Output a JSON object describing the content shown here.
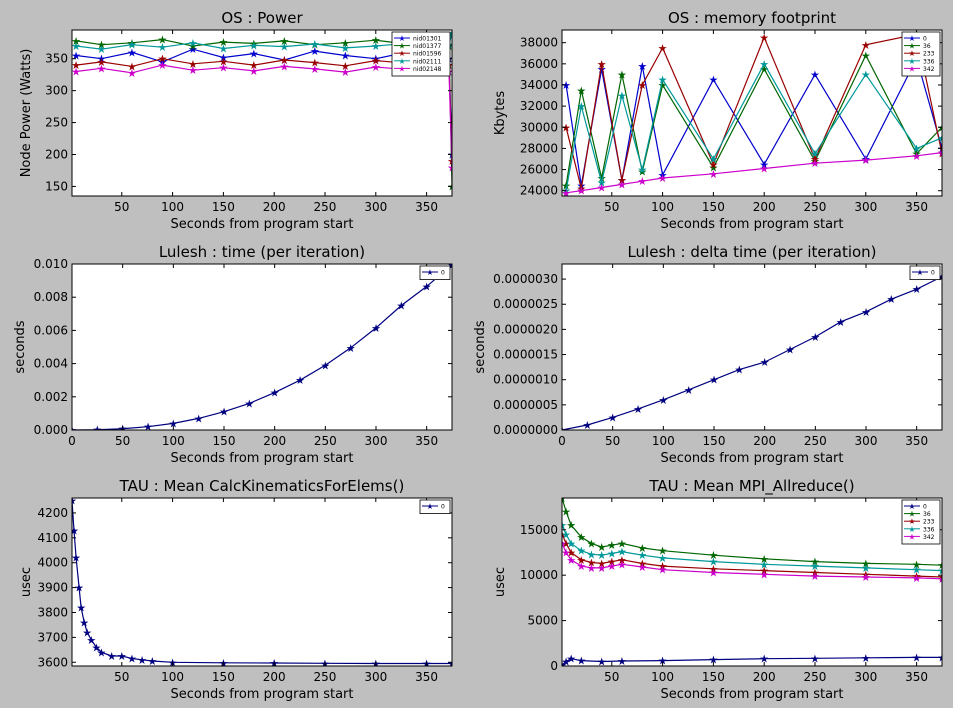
{
  "chart_data": [
    {
      "type": "line",
      "title": "OS : Power",
      "xlabel": "Seconds from program start",
      "ylabel": "Node Power (Watts)",
      "xlim": [
        1,
        375
      ],
      "ylim": [
        135,
        395
      ],
      "xticks": [
        50,
        100,
        150,
        200,
        250,
        300,
        350
      ],
      "yticks": [
        150,
        200,
        250,
        300,
        350
      ],
      "legend": "top-right",
      "series": [
        {
          "name": "nid01301",
          "color": "#0000cc",
          "x": [
            5,
            30,
            60,
            90,
            120,
            150,
            180,
            210,
            240,
            270,
            300,
            330,
            360,
            372,
            375
          ],
          "y": [
            355,
            350,
            360,
            345,
            365,
            352,
            358,
            348,
            362,
            355,
            350,
            360,
            355,
            350,
            200
          ]
        },
        {
          "name": "nid01377",
          "color": "#006600",
          "x": [
            5,
            30,
            60,
            90,
            120,
            150,
            180,
            210,
            240,
            270,
            300,
            330,
            360,
            372,
            375
          ],
          "y": [
            378,
            372,
            375,
            380,
            370,
            376,
            374,
            378,
            372,
            375,
            379,
            373,
            376,
            370,
            150
          ]
        },
        {
          "name": "nid01596",
          "color": "#990000",
          "x": [
            5,
            30,
            60,
            90,
            120,
            150,
            180,
            210,
            240,
            270,
            300,
            330,
            360,
            372,
            375
          ],
          "y": [
            340,
            345,
            338,
            350,
            342,
            346,
            340,
            348,
            344,
            339,
            347,
            343,
            345,
            340,
            190
          ]
        },
        {
          "name": "nid02111",
          "color": "#009999",
          "x": [
            5,
            30,
            60,
            90,
            120,
            150,
            180,
            210,
            240,
            270,
            300,
            330,
            360,
            372,
            375
          ],
          "y": [
            370,
            365,
            372,
            368,
            375,
            366,
            371,
            369,
            373,
            367,
            370,
            374,
            368,
            372,
            390
          ]
        },
        {
          "name": "nid02148",
          "color": "#cc00cc",
          "x": [
            5,
            30,
            60,
            90,
            120,
            150,
            180,
            210,
            240,
            270,
            300,
            330,
            360,
            372,
            375
          ],
          "y": [
            330,
            335,
            328,
            340,
            332,
            336,
            331,
            338,
            334,
            329,
            337,
            333,
            335,
            330,
            180
          ]
        }
      ]
    },
    {
      "type": "line",
      "title": "OS : memory footprint",
      "xlabel": "Seconds from program start",
      "ylabel": "Kbytes",
      "xlim": [
        1,
        375
      ],
      "ylim": [
        23500,
        39200
      ],
      "xticks": [
        50,
        100,
        150,
        200,
        250,
        300,
        350
      ],
      "yticks": [
        24000,
        26000,
        28000,
        30000,
        32000,
        34000,
        36000,
        38000
      ],
      "legend": "top-right",
      "series": [
        {
          "name": "0",
          "color": "#0000cc",
          "x": [
            5,
            20,
            40,
            60,
            80,
            100,
            150,
            200,
            250,
            300,
            350,
            375
          ],
          "y": [
            34000,
            24500,
            35500,
            25000,
            35800,
            25500,
            34500,
            26500,
            35000,
            27000,
            36500,
            28000
          ]
        },
        {
          "name": "36",
          "color": "#006600",
          "x": [
            5,
            20,
            40,
            60,
            80,
            100,
            150,
            200,
            250,
            300,
            350,
            375
          ],
          "y": [
            24500,
            33500,
            25200,
            35000,
            25800,
            34000,
            26200,
            35500,
            26800,
            36800,
            27500,
            30000
          ]
        },
        {
          "name": "233",
          "color": "#990000",
          "x": [
            5,
            20,
            40,
            60,
            80,
            100,
            150,
            200,
            250,
            300,
            350,
            375
          ],
          "y": [
            30000,
            24200,
            36000,
            25000,
            34000,
            37500,
            26500,
            38500,
            27000,
            37800,
            38800,
            27500
          ]
        },
        {
          "name": "336",
          "color": "#009999",
          "x": [
            5,
            20,
            40,
            60,
            80,
            100,
            150,
            200,
            250,
            300,
            350,
            375
          ],
          "y": [
            24000,
            32000,
            24800,
            33000,
            26000,
            34500,
            27000,
            36000,
            27500,
            35000,
            28000,
            29000
          ]
        },
        {
          "name": "342",
          "color": "#cc00cc",
          "x": [
            5,
            20,
            40,
            60,
            80,
            100,
            150,
            200,
            250,
            300,
            350,
            375
          ],
          "y": [
            23800,
            24000,
            24300,
            24600,
            24900,
            25200,
            25600,
            26100,
            26600,
            26900,
            27300,
            27600
          ]
        }
      ]
    },
    {
      "type": "line",
      "title": "Lulesh : time (per iteration)",
      "xlabel": "Seconds from program start",
      "ylabel": "seconds",
      "xlim": [
        0,
        375
      ],
      "ylim": [
        0,
        0.01
      ],
      "xticks": [
        0,
        50,
        100,
        150,
        200,
        250,
        300,
        350
      ],
      "yticks": [
        0.0,
        0.002,
        0.004,
        0.006,
        0.008,
        0.01
      ],
      "ytick_labels": [
        "0.000",
        "0.002",
        "0.004",
        "0.006",
        "0.008",
        "0.010"
      ],
      "legend": "top-right",
      "series": [
        {
          "name": "0",
          "color": "#000080",
          "x": [
            0,
            25,
            50,
            75,
            100,
            125,
            150,
            175,
            200,
            225,
            250,
            275,
            300,
            325,
            350,
            375
          ],
          "y": [
            0.0,
            2e-05,
            8e-05,
            0.0002,
            0.0004,
            0.0007,
            0.0011,
            0.0016,
            0.00225,
            0.003,
            0.0039,
            0.00495,
            0.00615,
            0.0075,
            0.00865,
            0.00995
          ]
        }
      ]
    },
    {
      "type": "line",
      "title": "Lulesh : delta time (per iteration)",
      "xlabel": "Seconds from program start",
      "ylabel": "seconds",
      "xlim": [
        0,
        375
      ],
      "ylim": [
        0,
        3.3e-06
      ],
      "xticks": [
        0,
        50,
        100,
        150,
        200,
        250,
        300,
        350
      ],
      "yticks": [
        0,
        5e-07,
        1e-06,
        1.5e-06,
        2e-06,
        2.5e-06,
        3e-06
      ],
      "ytick_labels": [
        "0.0000000",
        "0.0000005",
        "0.0000010",
        "0.0000015",
        "0.0000020",
        "0.0000025",
        "0.0000030"
      ],
      "legend": "top-right",
      "series": [
        {
          "name": "0",
          "color": "#000080",
          "x": [
            0,
            25,
            50,
            75,
            100,
            125,
            150,
            175,
            200,
            225,
            250,
            275,
            300,
            325,
            350,
            375
          ],
          "y": [
            0,
            1e-07,
            2.5e-07,
            4.2e-07,
            6e-07,
            8e-07,
            1e-06,
            1.2e-06,
            1.35e-06,
            1.6e-06,
            1.85e-06,
            2.15e-06,
            2.35e-06,
            2.6e-06,
            2.8e-06,
            3.05e-06
          ]
        }
      ]
    },
    {
      "type": "line",
      "title": "TAU : Mean CalcKinematicsForElems()",
      "xlabel": "Seconds from program start",
      "ylabel": "usec",
      "xlim": [
        1,
        375
      ],
      "ylim": [
        3585,
        4260
      ],
      "xticks": [
        50,
        100,
        150,
        200,
        250,
        300,
        350
      ],
      "yticks": [
        3600,
        3700,
        3800,
        3900,
        4000,
        4100,
        4200
      ],
      "legend": "top-right",
      "series": [
        {
          "name": "0",
          "color": "#000080",
          "x": [
            1,
            3,
            5,
            8,
            10,
            13,
            16,
            20,
            25,
            30,
            40,
            50,
            60,
            70,
            80,
            100,
            150,
            200,
            250,
            300,
            350,
            375
          ],
          "y": [
            4250,
            4130,
            4020,
            3900,
            3820,
            3760,
            3720,
            3690,
            3660,
            3640,
            3625,
            3625,
            3615,
            3610,
            3605,
            3600,
            3598,
            3597,
            3596,
            3595,
            3595,
            3595
          ]
        }
      ]
    },
    {
      "type": "line",
      "title": "TAU : Mean MPI_Allreduce()",
      "xlabel": "Seconds from program start",
      "ylabel": "usec",
      "xlim": [
        1,
        375
      ],
      "ylim": [
        0,
        18500
      ],
      "xticks": [
        50,
        100,
        150,
        200,
        250,
        300,
        350
      ],
      "yticks": [
        0,
        5000,
        10000,
        15000
      ],
      "legend": "top-right",
      "series": [
        {
          "name": "0",
          "color": "#000080",
          "x": [
            1,
            5,
            10,
            20,
            40,
            60,
            100,
            150,
            200,
            250,
            300,
            350,
            375
          ],
          "y": [
            100,
            500,
            800,
            600,
            500,
            550,
            600,
            700,
            800,
            850,
            900,
            950,
            950
          ]
        },
        {
          "name": "36",
          "color": "#006600",
          "x": [
            1,
            5,
            10,
            20,
            30,
            40,
            50,
            60,
            80,
            100,
            150,
            200,
            250,
            300,
            350,
            375
          ],
          "y": [
            18500,
            17000,
            15500,
            14200,
            13500,
            13100,
            13300,
            13500,
            13000,
            12700,
            12200,
            11800,
            11500,
            11300,
            11200,
            11100
          ]
        },
        {
          "name": "233",
          "color": "#990000",
          "x": [
            1,
            5,
            10,
            20,
            30,
            40,
            50,
            60,
            80,
            100,
            150,
            200,
            250,
            300,
            350,
            375
          ],
          "y": [
            14500,
            13500,
            12500,
            11700,
            11400,
            11300,
            11500,
            11700,
            11300,
            11000,
            10700,
            10500,
            10300,
            10100,
            9900,
            9800
          ]
        },
        {
          "name": "336",
          "color": "#009999",
          "x": [
            1,
            5,
            10,
            20,
            30,
            40,
            50,
            60,
            80,
            100,
            150,
            200,
            250,
            300,
            350,
            375
          ],
          "y": [
            15500,
            14500,
            13500,
            12700,
            12300,
            12200,
            12400,
            12600,
            12200,
            11900,
            11500,
            11200,
            11000,
            10800,
            10600,
            10500
          ]
        },
        {
          "name": "342",
          "color": "#cc00cc",
          "x": [
            1,
            5,
            10,
            20,
            30,
            40,
            50,
            60,
            80,
            100,
            150,
            200,
            250,
            300,
            350,
            375
          ],
          "y": [
            13500,
            12500,
            11700,
            11000,
            10800,
            10800,
            11000,
            11200,
            10900,
            10600,
            10300,
            10100,
            9900,
            9800,
            9700,
            9600
          ]
        }
      ]
    }
  ]
}
